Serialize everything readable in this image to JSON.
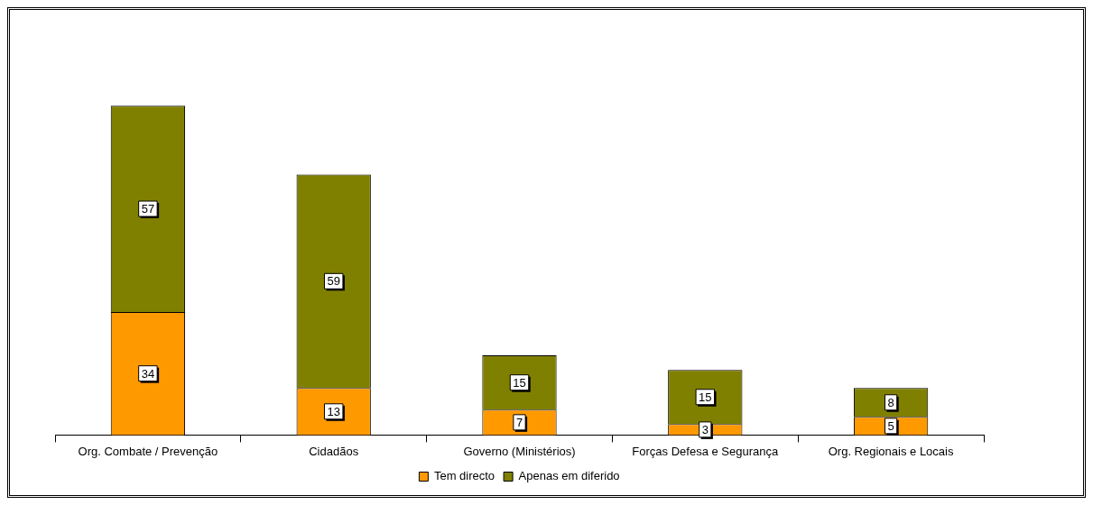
{
  "chart_data": {
    "type": "bar",
    "stacked": true,
    "categories": [
      "Org. Combate / Prevenção",
      "Cidadãos",
      "Governo (Ministérios)",
      "Forças Defesa e Segurança",
      "Org. Regionais e Locais"
    ],
    "series": [
      {
        "name": "Tem directo",
        "color": "#ff9900",
        "values": [
          34,
          13,
          7,
          3,
          5
        ]
      },
      {
        "name": "Apenas em diferido",
        "color": "#808000",
        "values": [
          57,
          59,
          15,
          15,
          8
        ]
      }
    ],
    "data_labels": true,
    "legend": "bottom"
  }
}
